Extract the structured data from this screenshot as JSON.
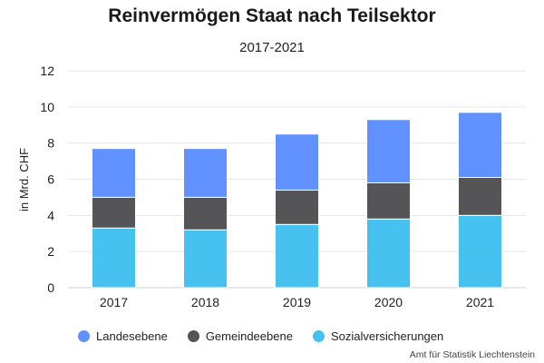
{
  "chart_data": {
    "type": "bar",
    "stacked": true,
    "title": "Reinvermögen Staat nach Teilsektor",
    "subtitle": "2017-2021",
    "ylabel": "in Mrd. CHF",
    "xlabel": "",
    "categories": [
      "2017",
      "2018",
      "2019",
      "2020",
      "2021"
    ],
    "ylim": [
      0,
      12
    ],
    "yticks": [
      "0",
      "2",
      "4",
      "6",
      "8",
      "10",
      "12"
    ],
    "grid": true,
    "legend_position": "bottom",
    "series": [
      {
        "name": "Sozialversicherungen",
        "color": "#47c1f0",
        "values": [
          3.3,
          3.2,
          3.5,
          3.8,
          4.0
        ]
      },
      {
        "name": "Gemeindeebene",
        "color": "#555557",
        "values": [
          1.7,
          1.8,
          1.9,
          2.0,
          2.1
        ]
      },
      {
        "name": "Landesebene",
        "color": "#6190ff",
        "values": [
          2.7,
          2.7,
          3.1,
          3.5,
          3.6
        ]
      }
    ],
    "legend_order": [
      "Landesebene",
      "Gemeindeebene",
      "Sozialversicherungen"
    ]
  },
  "source": "Amt für Statistik Liechtenstein"
}
